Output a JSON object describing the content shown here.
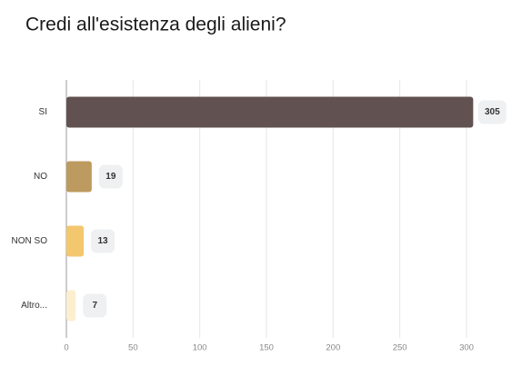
{
  "chart_data": {
    "type": "bar",
    "orientation": "horizontal",
    "title": "Credi all'esistenza degli alieni?",
    "categories": [
      "SI",
      "NO",
      "NON SO",
      "Altro..."
    ],
    "values": [
      305,
      19,
      13,
      7
    ],
    "colors": [
      "#625151",
      "#bd9a5f",
      "#f2c76e",
      "#fcefd0"
    ],
    "xlim": [
      0,
      300
    ],
    "xticks": [
      0,
      50,
      100,
      150,
      200,
      250,
      300
    ],
    "grid": true
  }
}
